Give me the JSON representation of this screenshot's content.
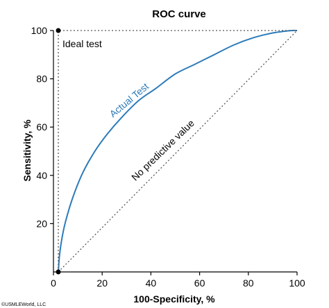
{
  "chart_data": {
    "type": "line",
    "title": "ROC curve",
    "xlabel": "100-Specificity, %",
    "ylabel": "Sensitivity, %",
    "xlim": [
      0,
      100
    ],
    "ylim": [
      0,
      100
    ],
    "xticks": [
      0,
      20,
      40,
      60,
      80,
      100
    ],
    "yticks": [
      20,
      40,
      60,
      80,
      100
    ],
    "grid": false,
    "series": [
      {
        "name": "Actual Test",
        "color": "#2b7bba",
        "style": "solid",
        "x": [
          2,
          2.5,
          3.5,
          5,
          8,
          12,
          17,
          22,
          28,
          35,
          42,
          50,
          58,
          66,
          74,
          82,
          90,
          95,
          98,
          100
        ],
        "y": [
          0,
          7,
          14,
          21,
          31,
          41,
          50,
          57,
          64,
          71,
          76,
          82,
          86,
          90,
          94,
          97,
          99,
          99.7,
          100,
          100
        ]
      },
      {
        "name": "No predictive value",
        "color": "#555555",
        "style": "dotted",
        "x": [
          2,
          100
        ],
        "y": [
          0,
          100
        ]
      },
      {
        "name": "Ideal test",
        "color": "#555555",
        "style": "dotted",
        "x": [
          2,
          2,
          100
        ],
        "y": [
          0,
          100,
          100
        ]
      }
    ],
    "points": [
      {
        "x": 2,
        "y": 0
      },
      {
        "x": 2,
        "y": 100
      }
    ],
    "annotations": {
      "ideal": "Ideal test",
      "actual": "Actual Test",
      "no_predictive": "No predictive value"
    }
  },
  "copyright": "©USMLEWorld, LLC"
}
